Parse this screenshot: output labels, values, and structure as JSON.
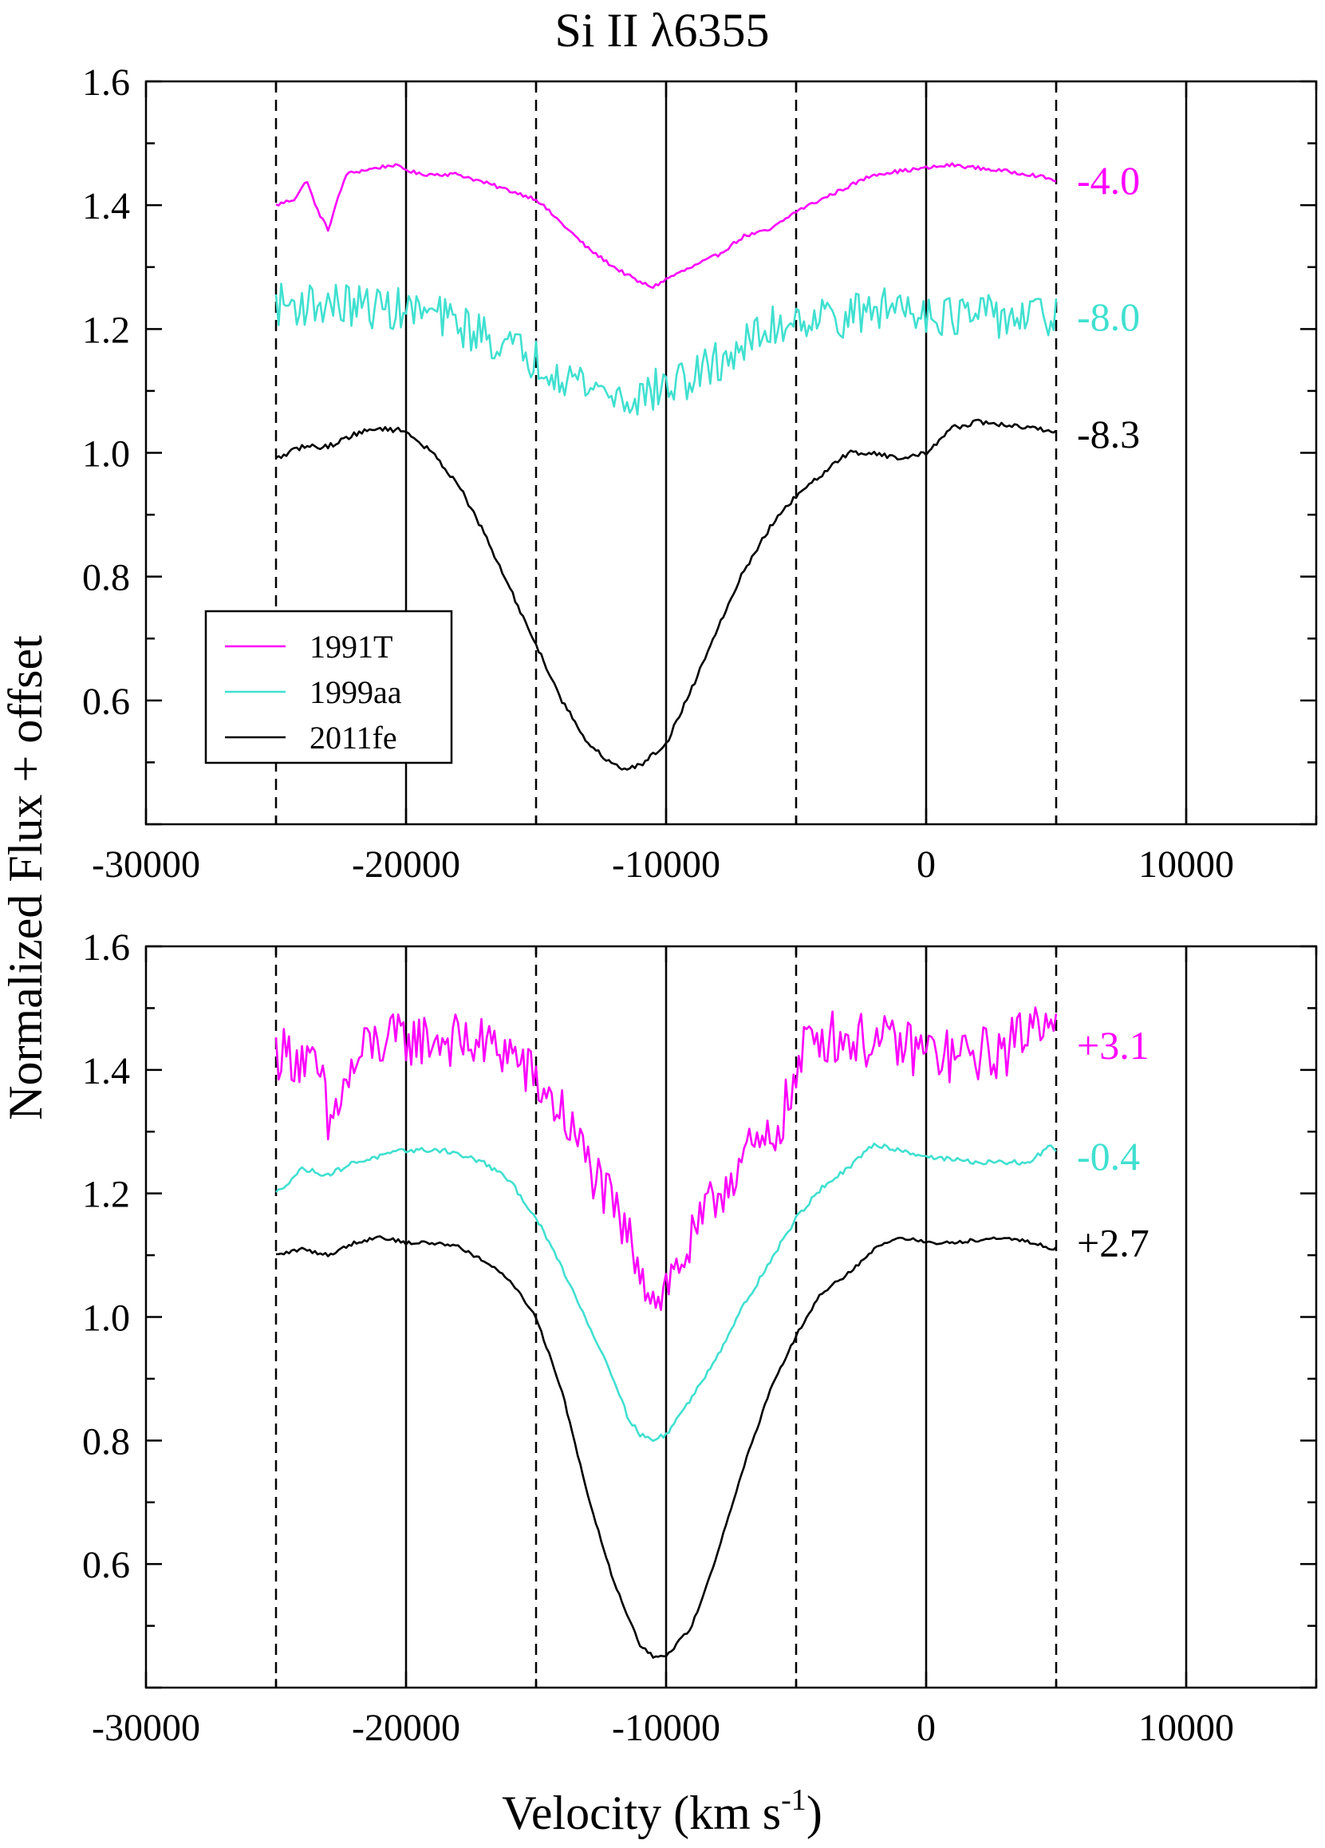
{
  "title": "Si II λ6355",
  "ylabel": "Normalized Flux + offset",
  "xlabel_main": "Velocity (km s",
  "xlabel_sup": "-1",
  "xlabel_close": ")",
  "colors": {
    "1991T": "#ff00ff",
    "1999aa": "#40e0d0",
    "2011fe": "#000000"
  },
  "chart_data": [
    {
      "type": "line",
      "panel": "top",
      "xlim": [
        -30000,
        15000
      ],
      "ylim": [
        0.4,
        1.6
      ],
      "x_ticks": [
        -30000,
        -20000,
        -10000,
        0,
        10000
      ],
      "x_tick_labels": [
        "-30000",
        "-20000",
        "-10000",
        "0",
        "10000"
      ],
      "y_ticks": [
        0.6,
        0.8,
        1.0,
        1.2,
        1.4,
        1.6
      ],
      "y_tick_labels": [
        "0.6",
        "0.8",
        "1.0",
        "1.2",
        "1.4",
        "1.6"
      ],
      "vlines_solid": [
        -20000,
        -10000,
        0,
        10000
      ],
      "vlines_dashed": [
        -25000,
        -15000,
        -5000,
        5000
      ],
      "legend": {
        "placement": "lower-left",
        "entries": [
          "1991T",
          "1999aa",
          "2011fe"
        ]
      },
      "annotations": [
        {
          "text": "-4.0",
          "series": "1991T",
          "y": 1.44
        },
        {
          "text": "-8.0",
          "series": "1999aa",
          "y": 1.22
        },
        {
          "text": "-8.3",
          "series": "2011fe",
          "y": 1.03
        }
      ],
      "series": [
        {
          "name": "1991T",
          "noise": 0.003,
          "x": [
            -25000,
            -24300,
            -23800,
            -23500,
            -23000,
            -22700,
            -22300,
            -21800,
            -20500,
            -19500,
            -18000,
            -16500,
            -15000,
            -14000,
            -13000,
            -12000,
            -11000,
            -10500,
            -9800,
            -9000,
            -8000,
            -7000,
            -6000,
            -5000,
            -4000,
            -3000,
            -2000,
            -1000,
            0,
            1000,
            2000,
            3000,
            4000,
            5000
          ],
          "y": [
            1.4,
            1.41,
            1.44,
            1.4,
            1.36,
            1.4,
            1.45,
            1.455,
            1.465,
            1.45,
            1.45,
            1.43,
            1.41,
            1.37,
            1.33,
            1.3,
            1.275,
            1.268,
            1.285,
            1.3,
            1.32,
            1.35,
            1.36,
            1.39,
            1.41,
            1.43,
            1.45,
            1.455,
            1.46,
            1.465,
            1.46,
            1.455,
            1.45,
            1.44
          ]
        },
        {
          "name": "1999aa",
          "noise": 0.035,
          "x": [
            -25000,
            -23000,
            -21000,
            -19000,
            -17000,
            -15000,
            -13000,
            -11500,
            -10500,
            -9000,
            -7500,
            -6000,
            -5000,
            -3000,
            -1000,
            1000,
            3000,
            5000
          ],
          "y": [
            1.24,
            1.24,
            1.235,
            1.225,
            1.19,
            1.15,
            1.11,
            1.085,
            1.1,
            1.12,
            1.16,
            1.2,
            1.22,
            1.22,
            1.24,
            1.22,
            1.22,
            1.22
          ]
        },
        {
          "name": "2011fe",
          "noise": 0.004,
          "x": [
            -25000,
            -24000,
            -23000,
            -22000,
            -21000,
            -20000,
            -19000,
            -18000,
            -17000,
            -16000,
            -15000,
            -14000,
            -13000,
            -12000,
            -11500,
            -11000,
            -10000,
            -9000,
            -8000,
            -7000,
            -6000,
            -5000,
            -4000,
            -3000,
            -2000,
            -1000,
            0,
            1000,
            2000,
            3000,
            4000,
            5000
          ],
          "y": [
            0.99,
            1.01,
            1.01,
            1.03,
            1.04,
            1.035,
            1.0,
            0.95,
            0.87,
            0.78,
            0.69,
            0.6,
            0.53,
            0.495,
            0.49,
            0.495,
            0.53,
            0.62,
            0.72,
            0.81,
            0.88,
            0.93,
            0.965,
            1.0,
            1.0,
            0.99,
            1.0,
            1.04,
            1.05,
            1.045,
            1.04,
            1.035
          ]
        }
      ]
    },
    {
      "type": "line",
      "panel": "bottom",
      "xlim": [
        -30000,
        15000
      ],
      "ylim": [
        0.4,
        1.6
      ],
      "x_ticks": [
        -30000,
        -20000,
        -10000,
        0,
        10000
      ],
      "x_tick_labels": [
        "-30000",
        "-20000",
        "-10000",
        "0",
        "10000"
      ],
      "y_ticks": [
        0.6,
        0.8,
        1.0,
        1.2,
        1.4,
        1.6
      ],
      "y_tick_labels": [
        "0.6",
        "0.8",
        "1.0",
        "1.2",
        "1.4",
        "1.6"
      ],
      "vlines_solid": [
        -20000,
        -10000,
        0,
        10000
      ],
      "vlines_dashed": [
        -25000,
        -15000,
        -5000,
        5000
      ],
      "annotations": [
        {
          "text": "+3.1",
          "series": "1991T",
          "y": 1.44
        },
        {
          "text": "-0.4",
          "series": "1999aa",
          "y": 1.26
        },
        {
          "text": "+2.7",
          "series": "2011fe",
          "y": 1.12
        }
      ],
      "series": [
        {
          "name": "1991T",
          "noise": 0.045,
          "x": [
            -25000,
            -24000,
            -23200,
            -23000,
            -22500,
            -21500,
            -20000,
            -18500,
            -17000,
            -16000,
            -15400,
            -15000,
            -14000,
            -13000,
            -12000,
            -11000,
            -10500,
            -10000,
            -9000,
            -8000,
            -7000,
            -6000,
            -5000,
            -4500,
            -3000,
            -1000,
            1000,
            3000,
            4700,
            5000
          ],
          "y": [
            1.43,
            1.42,
            1.38,
            1.3,
            1.36,
            1.44,
            1.45,
            1.45,
            1.44,
            1.43,
            1.4,
            1.38,
            1.33,
            1.25,
            1.17,
            1.09,
            1.03,
            1.05,
            1.12,
            1.2,
            1.26,
            1.28,
            1.38,
            1.46,
            1.45,
            1.44,
            1.42,
            1.43,
            1.5,
            1.48
          ]
        },
        {
          "name": "1999aa",
          "noise": 0.004,
          "x": [
            -25000,
            -24000,
            -23000,
            -22000,
            -20000,
            -18500,
            -17000,
            -16000,
            -15000,
            -14000,
            -13000,
            -12000,
            -11500,
            -11000,
            -10500,
            -10000,
            -9000,
            -8000,
            -7000,
            -6000,
            -5000,
            -4000,
            -3000,
            -2000,
            -1000,
            0,
            1000,
            2000,
            3000,
            4000,
            4800,
            5000
          ],
          "y": [
            1.2,
            1.24,
            1.23,
            1.25,
            1.27,
            1.27,
            1.25,
            1.22,
            1.16,
            1.08,
            0.99,
            0.9,
            0.84,
            0.81,
            0.8,
            0.81,
            0.87,
            0.94,
            1.02,
            1.09,
            1.16,
            1.21,
            1.24,
            1.28,
            1.27,
            1.26,
            1.255,
            1.25,
            1.25,
            1.25,
            1.28,
            1.27
          ]
        },
        {
          "name": "2011fe",
          "noise": 0.003,
          "x": [
            -25000,
            -24000,
            -23000,
            -22000,
            -21000,
            -20000,
            -19000,
            -18000,
            -17000,
            -16000,
            -15000,
            -14000,
            -13000,
            -12000,
            -11000,
            -10500,
            -10000,
            -9000,
            -8000,
            -7000,
            -6000,
            -5000,
            -4000,
            -3000,
            -2000,
            -1000,
            0,
            1000,
            2000,
            3000,
            4000,
            5000
          ],
          "y": [
            1.1,
            1.11,
            1.1,
            1.12,
            1.13,
            1.12,
            1.12,
            1.115,
            1.09,
            1.06,
            1.0,
            0.88,
            0.71,
            0.57,
            0.47,
            0.45,
            0.45,
            0.5,
            0.62,
            0.76,
            0.88,
            0.97,
            1.04,
            1.07,
            1.11,
            1.13,
            1.12,
            1.12,
            1.125,
            1.13,
            1.12,
            1.11
          ]
        }
      ]
    }
  ]
}
